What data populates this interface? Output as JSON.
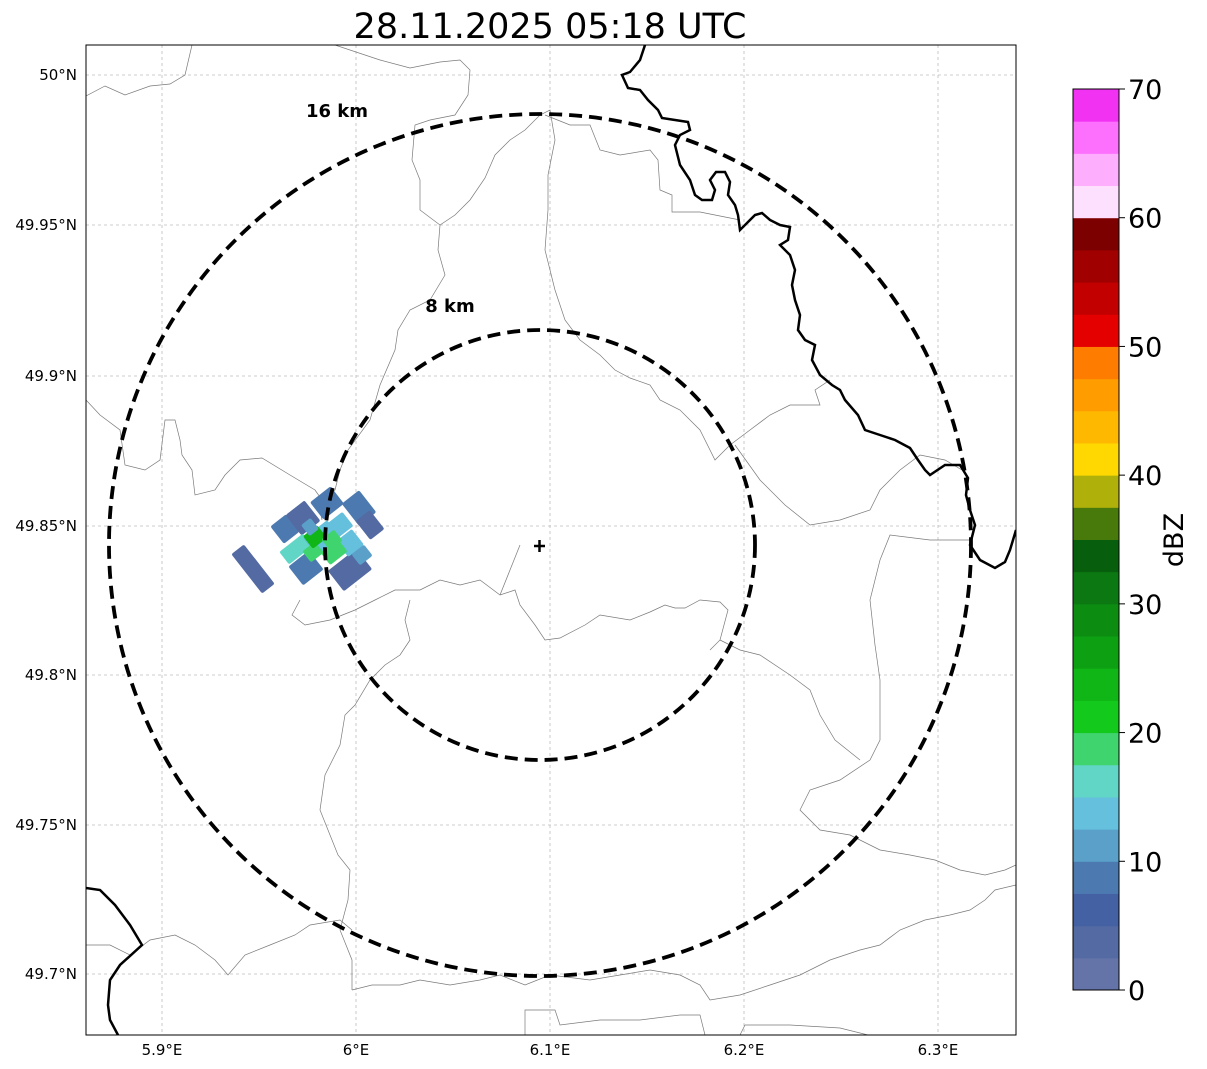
{
  "map": {
    "title": "28.11.2025 05:18 UTC",
    "x_ticks": [
      "5.9°E",
      "6°E",
      "6.1°E",
      "6.2°E",
      "6.3°E"
    ],
    "y_ticks": [
      "50°N",
      "49.95°N",
      "49.9°N",
      "49.85°N",
      "49.8°N",
      "49.75°N",
      "49.7°N"
    ],
    "range_rings": [
      {
        "label": "16 km",
        "radius_km": 16
      },
      {
        "label": "8 km",
        "radius_km": 8
      }
    ],
    "gridlines": true,
    "radar_site_marker": "plus-icon"
  },
  "colorbar": {
    "label": "dBZ",
    "tick_labels": [
      "0",
      "10",
      "20",
      "30",
      "40",
      "50",
      "60",
      "70"
    ],
    "min": 0,
    "max": 70,
    "step": 2.5,
    "colors": [
      "#6473a8",
      "#536aa2",
      "#4462a3",
      "#4c7ab0",
      "#5aa0c9",
      "#64c0dc",
      "#62d6c6",
      "#3fd46e",
      "#12c91c",
      "#10b616",
      "#0da012",
      "#0c8d12",
      "#0b7812",
      "#075f0e",
      "#477a0a",
      "#b0b00a",
      "#fed800",
      "#feb800",
      "#fe9c00",
      "#fe7c00",
      "#e50000",
      "#c20000",
      "#a00000",
      "#7c0000",
      "#fde0fd",
      "#fdaefd",
      "#fd6ffd",
      "#f232f2"
    ]
  },
  "echoes": [
    {
      "dbz": 6,
      "color": "#536aa2"
    },
    {
      "dbz": 8,
      "color": "#4c7ab0"
    },
    {
      "dbz": 12,
      "color": "#5aa0c9"
    },
    {
      "dbz": 15,
      "color": "#64c0dc"
    },
    {
      "dbz": 18,
      "color": "#62d6c6"
    },
    {
      "dbz": 20,
      "color": "#3fd46e"
    },
    {
      "dbz": 25,
      "color": "#10b616"
    }
  ]
}
